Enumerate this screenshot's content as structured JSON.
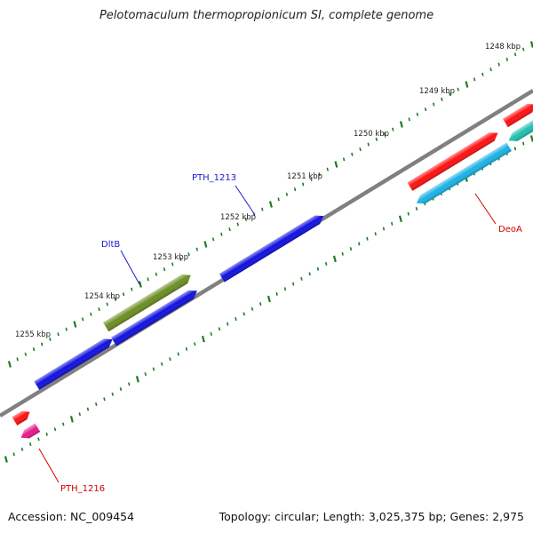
{
  "title": "Pelotomaculum thermopropionicum SI, complete genome",
  "footer": {
    "accession": "Accession: NC_009454",
    "summary": "Topology: circular; Length: 3,025,375 bp; Genes: 2,975"
  },
  "colors": {
    "backbone": "#808080",
    "tick": "#1e7d1e",
    "ruler_label": "#222222",
    "label_blue": "#1a1acc",
    "label_red": "#d40000"
  },
  "ruler_labels": [
    "1248 kbp",
    "1249 kbp",
    "1250 kbp",
    "1251 kbp",
    "1252 kbp",
    "1253 kbp",
    "1254 kbp",
    "1255 kbp"
  ],
  "genes": [
    {
      "name": "PTH_1213",
      "strand": "forward",
      "color": "#1010e0"
    },
    {
      "name": "DltB",
      "strand": "forward",
      "color": "#6b8e23"
    },
    {
      "name": "DeoA",
      "strand": "reverse",
      "color": "#1ab2e6"
    },
    {
      "name": "PTH_1216",
      "strand": "reverse",
      "color": "#e8198b"
    }
  ],
  "features": [
    {
      "strand": "reverse",
      "color": "#ff1010"
    },
    {
      "strand": "forward",
      "color": "#1010e0"
    },
    {
      "strand": "forward",
      "color": "#1010e0"
    },
    {
      "strand": "forward",
      "color": "#ff1010"
    },
    {
      "strand": "forward",
      "color": "#ff1010"
    },
    {
      "strand": "reverse",
      "color": "#20c0b0"
    }
  ]
}
